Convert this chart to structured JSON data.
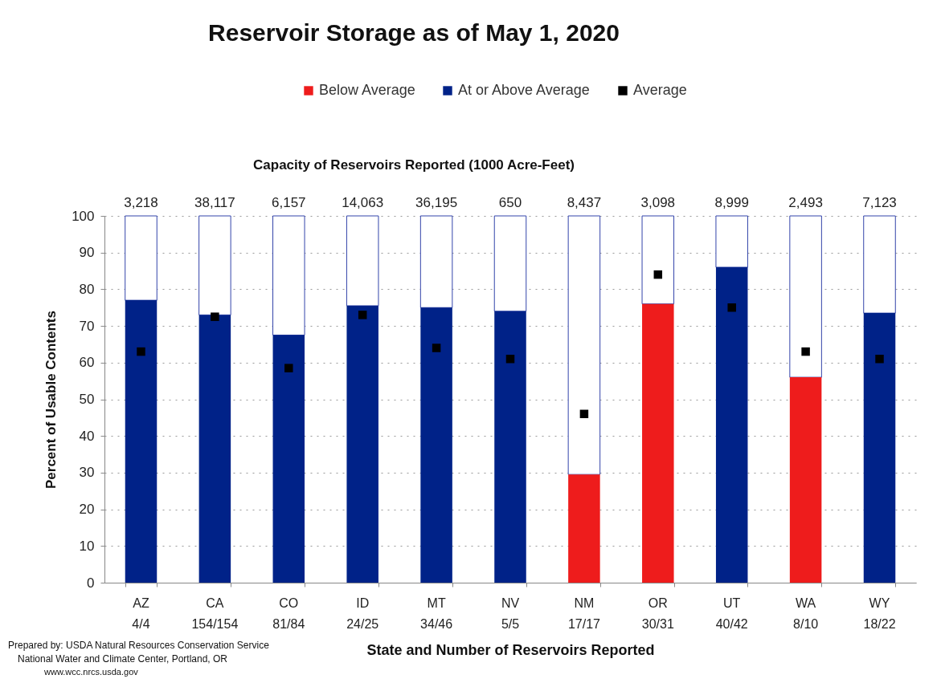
{
  "chart_data": {
    "type": "bar",
    "title": "Reservoir Storage as of May 1, 2020",
    "xlabel": "State and Number of Reservoirs Reported",
    "ylabel": "Percent of Usable Contents",
    "categories": [
      "AZ\n4/4",
      "CA\n154/154",
      "CO\n81/84",
      "ID\n24/25",
      "MT\n34/46",
      "NV\n5/5",
      "NM\n17/17",
      "OR\n30/31",
      "UT\n40/42",
      "WA\n8/10",
      "WY\n18/22"
    ],
    "stacked": true,
    "series": [
      {
        "name": "Below Average",
        "color": "#ee1c1c",
        "values": [
          null,
          null,
          null,
          null,
          null,
          null,
          29.5,
          76,
          null,
          56,
          null
        ]
      },
      {
        "name": "At or Above Average",
        "color": "#002288",
        "values": [
          77,
          73,
          67.5,
          75.5,
          75,
          74,
          null,
          null,
          86,
          null,
          73.5
        ]
      },
      {
        "color": "#ffffff",
        "values": [
          23,
          27,
          32.5,
          24.5,
          25,
          26,
          70.5,
          24,
          14,
          44,
          26.5
        ]
      },
      {
        "name": "Average",
        "type": "scatter",
        "marker": "square",
        "color": "#000000",
        "values": [
          63,
          72.5,
          58.5,
          73,
          64,
          61,
          46,
          84,
          75,
          63,
          61
        ]
      }
    ],
    "ylim": [
      0,
      100
    ],
    "yticks": [
      0,
      10,
      20,
      30,
      40,
      50,
      60,
      70,
      80,
      90,
      100
    ],
    "grid": "y",
    "legend": "top",
    "annotations": [
      "Capacity of Reservoirs Reported (1000 Acre-Feet)",
      {
        "text": "3,218",
        "x": "AZ\n4/4",
        "y": 100
      },
      {
        "text": "38,117",
        "x": "CA\n154/154",
        "y": 100
      },
      {
        "text": "6,157",
        "x": "CO\n81/84",
        "y": 100
      },
      {
        "text": "14,063",
        "x": "ID\n24/25",
        "y": 100
      },
      {
        "text": "36,195",
        "x": "MT\n34/46",
        "y": 100
      },
      {
        "text": "650",
        "x": "NV\n5/5",
        "y": 100
      },
      {
        "text": "8,437",
        "x": "NM\n17/17",
        "y": 100
      },
      {
        "text": "3,098",
        "x": "OR\n30/31",
        "y": 100
      },
      {
        "text": "8,999",
        "x": "UT\n40/42",
        "y": 100
      },
      {
        "text": "2,493",
        "x": "WA\n8/10",
        "y": 100
      },
      {
        "text": "7,123",
        "x": "WY\n18/22",
        "y": 100
      },
      "Prepared by: USDA Natural Resources Conservation Service",
      "National Water and Climate Center, Portland, OR",
      "www.wcc.nrcs.usda.gov"
    ]
  }
}
